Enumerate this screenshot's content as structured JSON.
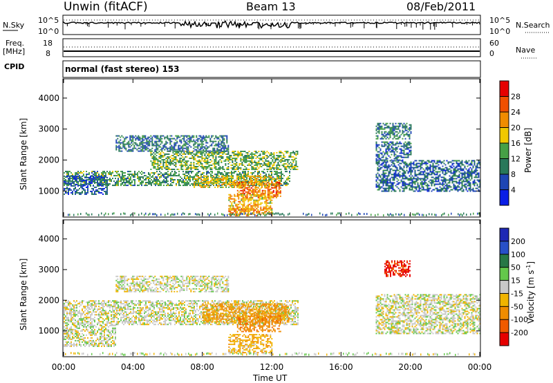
{
  "header": {
    "station": "Unwin (fitACF)",
    "beam": "Beam 13",
    "date": "08/Feb/2011"
  },
  "panels": {
    "nsky_label": "N.Sky",
    "nsky_ticks": [
      "10^5",
      "10^0"
    ],
    "nsearch_label": "N.Search",
    "nsearch_ticks": [
      "10^5",
      "10^0"
    ],
    "freq_label": "Freq.",
    "freq_unit": "[MHz]",
    "freq_ticks": [
      "18",
      "8"
    ],
    "nave_label": "Nave",
    "nave_ticks": [
      "60",
      "0"
    ],
    "cpid_label": "CPID",
    "cpid_text": "normal (fast stereo) 153"
  },
  "colors": {
    "power_scale": [
      "#0a1ee6",
      "#1e46b4",
      "#28785a",
      "#46a046",
      "#f0c800",
      "#f08c00",
      "#f05000",
      "#e60000"
    ],
    "velocity_scale": [
      "#1e28b4",
      "#2850c8",
      "#287846",
      "#64c84b",
      "#c8c8c8",
      "#f0b400",
      "#f08c00",
      "#f05a00",
      "#e60000"
    ],
    "ground_scatter": "#b4b4b4"
  },
  "chart_data": [
    {
      "type": "heatmap",
      "title": "",
      "xlabel": "Time UT",
      "ylabel": "Slant Range [km]",
      "x_ticks": [
        "00:00",
        "04:00",
        "08:00",
        "12:00",
        "16:00",
        "20:00",
        "00:00"
      ],
      "y_ticks": [
        "1000",
        "2000",
        "3000",
        "4000"
      ],
      "xlim": [
        0,
        24
      ],
      "ylim": [
        180,
        4600
      ],
      "colorbar": {
        "label": "Power [dB]",
        "ticks": [
          "4",
          "8",
          "12",
          "16",
          "20",
          "24",
          "28"
        ],
        "range": [
          0,
          30
        ]
      },
      "echo_regions": [
        {
          "t": [
            0.0,
            13.0
          ],
          "range": [
            1200,
            1650
          ],
          "power": 12
        },
        {
          "t": [
            5.0,
            13.5
          ],
          "range": [
            1700,
            2300
          ],
          "power": 14
        },
        {
          "t": [
            3.0,
            9.5
          ],
          "range": [
            2300,
            2800
          ],
          "power": 9
        },
        {
          "t": [
            7.5,
            12.5
          ],
          "range": [
            1100,
            1500
          ],
          "power": 19
        },
        {
          "t": [
            10.0,
            12.5
          ],
          "range": [
            800,
            1300
          ],
          "power": 24
        },
        {
          "t": [
            9.5,
            12.0
          ],
          "range": [
            400,
            900
          ],
          "power": 20
        },
        {
          "t": [
            9.5,
            12.0
          ],
          "range": [
            200,
            450
          ],
          "power": 22
        },
        {
          "t": [
            0.0,
            2.5
          ],
          "range": [
            900,
            1500
          ],
          "power": 7
        },
        {
          "t": [
            18.0,
            24.0
          ],
          "range": [
            1000,
            2000
          ],
          "power": 8
        },
        {
          "t": [
            18.0,
            20.0
          ],
          "range": [
            2000,
            2600
          ],
          "power": 8
        },
        {
          "t": [
            18.0,
            20.0
          ],
          "range": [
            2700,
            3200
          ],
          "power": 10
        }
      ]
    },
    {
      "type": "heatmap",
      "title": "",
      "xlabel": "Time UT",
      "ylabel": "Slant Range [km]",
      "x_ticks": [
        "00:00",
        "04:00",
        "08:00",
        "12:00",
        "16:00",
        "20:00",
        "00:00"
      ],
      "y_ticks": [
        "1000",
        "2000",
        "3000",
        "4000"
      ],
      "xlim": [
        0,
        24
      ],
      "ylim": [
        180,
        4600
      ],
      "colorbar": {
        "label": "Velocity [m s^-1]",
        "unit": "m s",
        "unit_exp": "-1",
        "ticks": [
          "200",
          "100",
          "50",
          "15",
          "-15",
          "-50",
          "-100",
          "-200"
        ],
        "range": [
          -250,
          250
        ]
      },
      "echo_regions": [
        {
          "t": [
            0.0,
            13.5
          ],
          "range": [
            1200,
            2000
          ],
          "velocity": 0
        },
        {
          "t": [
            3.0,
            9.5
          ],
          "range": [
            2300,
            2800
          ],
          "velocity": 0
        },
        {
          "t": [
            0.0,
            3.0
          ],
          "range": [
            500,
            1200
          ],
          "velocity": 0
        },
        {
          "t": [
            8.0,
            13.0
          ],
          "range": [
            1300,
            1900
          ],
          "velocity": -60
        },
        {
          "t": [
            10.0,
            12.5
          ],
          "range": [
            1000,
            1500
          ],
          "velocity": -80
        },
        {
          "t": [
            9.5,
            12.0
          ],
          "range": [
            300,
            900
          ],
          "velocity": -40
        },
        {
          "t": [
            18.0,
            24.0
          ],
          "range": [
            900,
            2200
          ],
          "velocity": 0
        },
        {
          "t": [
            18.5,
            20.0
          ],
          "range": [
            2800,
            3300
          ],
          "velocity": -200
        }
      ]
    }
  ]
}
